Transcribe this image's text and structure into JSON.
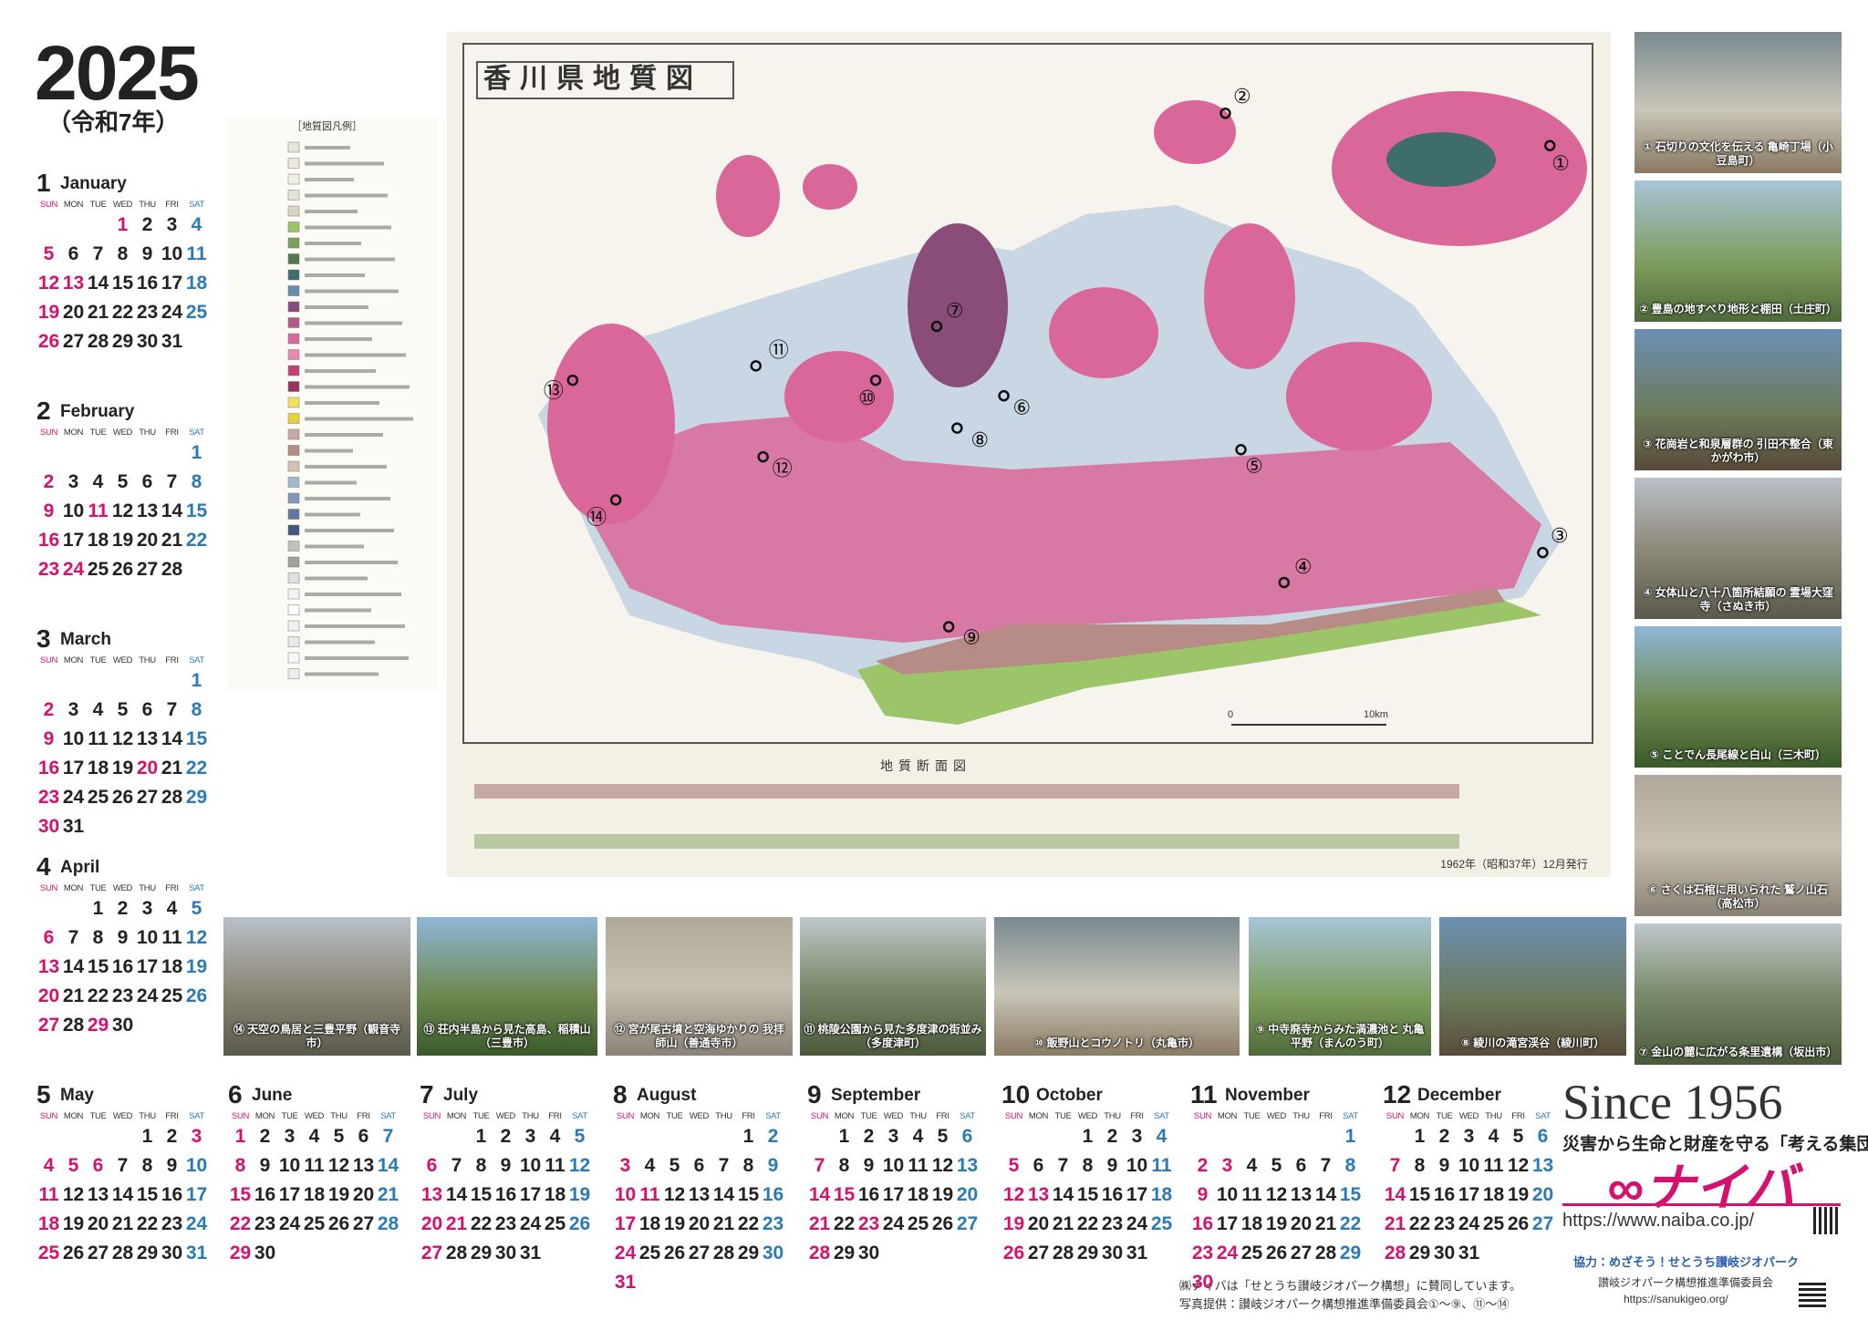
{
  "header": {
    "year": "2025",
    "era": "（令和7年）"
  },
  "weekdays": [
    "SUN",
    "MON",
    "TUE",
    "WED",
    "THU",
    "FRI",
    "SAT"
  ],
  "months": [
    {
      "number": "1",
      "name": "January",
      "holidays": [
        1,
        13
      ],
      "weeks": [
        [
          null,
          null,
          null,
          1,
          2,
          3,
          4
        ],
        [
          5,
          6,
          7,
          8,
          9,
          10,
          11
        ],
        [
          12,
          13,
          14,
          15,
          16,
          17,
          18
        ],
        [
          19,
          20,
          21,
          22,
          23,
          24,
          25
        ],
        [
          26,
          27,
          28,
          29,
          30,
          31
        ]
      ]
    },
    {
      "number": "2",
      "name": "February",
      "holidays": [
        11,
        23,
        24
      ],
      "weeks": [
        [
          null,
          null,
          null,
          null,
          null,
          null,
          1
        ],
        [
          2,
          3,
          4,
          5,
          6,
          7,
          8
        ],
        [
          9,
          10,
          11,
          12,
          13,
          14,
          15
        ],
        [
          16,
          17,
          18,
          19,
          20,
          21,
          22
        ],
        [
          23,
          24,
          25,
          26,
          27,
          28
        ]
      ]
    },
    {
      "number": "3",
      "name": "March",
      "holidays": [
        20
      ],
      "weeks": [
        [
          null,
          null,
          null,
          null,
          null,
          null,
          1
        ],
        [
          2,
          3,
          4,
          5,
          6,
          7,
          8
        ],
        [
          9,
          10,
          11,
          12,
          13,
          14,
          15
        ],
        [
          16,
          17,
          18,
          19,
          20,
          21,
          22
        ],
        [
          23,
          24,
          25,
          26,
          27,
          28,
          29
        ],
        [
          30,
          31
        ]
      ]
    },
    {
      "number": "4",
      "name": "April",
      "holidays": [
        29
      ],
      "weeks": [
        [
          null,
          null,
          1,
          2,
          3,
          4,
          5
        ],
        [
          6,
          7,
          8,
          9,
          10,
          11,
          12
        ],
        [
          13,
          14,
          15,
          16,
          17,
          18,
          19
        ],
        [
          20,
          21,
          22,
          23,
          24,
          25,
          26
        ],
        [
          27,
          28,
          29,
          30
        ]
      ]
    },
    {
      "number": "5",
      "name": "May",
      "holidays": [
        3,
        4,
        5,
        6
      ],
      "weeks": [
        [
          null,
          null,
          null,
          null,
          1,
          2,
          3
        ],
        [
          4,
          5,
          6,
          7,
          8,
          9,
          10
        ],
        [
          11,
          12,
          13,
          14,
          15,
          16,
          17
        ],
        [
          18,
          19,
          20,
          21,
          22,
          23,
          24
        ],
        [
          25,
          26,
          27,
          28,
          29,
          30,
          31
        ]
      ]
    },
    {
      "number": "6",
      "name": "June",
      "holidays": [],
      "weeks": [
        [
          1,
          2,
          3,
          4,
          5,
          6,
          7
        ],
        [
          8,
          9,
          10,
          11,
          12,
          13,
          14
        ],
        [
          15,
          16,
          17,
          18,
          19,
          20,
          21
        ],
        [
          22,
          23,
          24,
          25,
          26,
          27,
          28
        ],
        [
          29,
          30
        ]
      ]
    },
    {
      "number": "7",
      "name": "July",
      "holidays": [
        21
      ],
      "weeks": [
        [
          null,
          null,
          1,
          2,
          3,
          4,
          5
        ],
        [
          6,
          7,
          8,
          9,
          10,
          11,
          12
        ],
        [
          13,
          14,
          15,
          16,
          17,
          18,
          19
        ],
        [
          20,
          21,
          22,
          23,
          24,
          25,
          26
        ],
        [
          27,
          28,
          29,
          30,
          31
        ]
      ]
    },
    {
      "number": "8",
      "name": "August",
      "holidays": [
        11
      ],
      "weeks": [
        [
          null,
          null,
          null,
          null,
          null,
          1,
          2
        ],
        [
          3,
          4,
          5,
          6,
          7,
          8,
          9
        ],
        [
          10,
          11,
          12,
          13,
          14,
          15,
          16
        ],
        [
          17,
          18,
          19,
          20,
          21,
          22,
          23
        ],
        [
          24,
          25,
          26,
          27,
          28,
          29,
          30
        ],
        [
          31
        ]
      ]
    },
    {
      "number": "9",
      "name": "September",
      "holidays": [
        15,
        23
      ],
      "weeks": [
        [
          null,
          1,
          2,
          3,
          4,
          5,
          6
        ],
        [
          7,
          8,
          9,
          10,
          11,
          12,
          13
        ],
        [
          14,
          15,
          16,
          17,
          18,
          19,
          20
        ],
        [
          21,
          22,
          23,
          24,
          25,
          26,
          27
        ],
        [
          28,
          29,
          30
        ]
      ]
    },
    {
      "number": "10",
      "name": "October",
      "holidays": [
        13
      ],
      "weeks": [
        [
          null,
          null,
          null,
          1,
          2,
          3,
          4
        ],
        [
          5,
          6,
          7,
          8,
          9,
          10,
          11
        ],
        [
          12,
          13,
          14,
          15,
          16,
          17,
          18
        ],
        [
          19,
          20,
          21,
          22,
          23,
          24,
          25
        ],
        [
          26,
          27,
          28,
          29,
          30,
          31
        ]
      ]
    },
    {
      "number": "11",
      "name": "November",
      "holidays": [
        3,
        23,
        24
      ],
      "weeks": [
        [
          null,
          null,
          null,
          null,
          null,
          null,
          1
        ],
        [
          2,
          3,
          4,
          5,
          6,
          7,
          8
        ],
        [
          9,
          10,
          11,
          12,
          13,
          14,
          15
        ],
        [
          16,
          17,
          18,
          19,
          20,
          21,
          22
        ],
        [
          23,
          24,
          25,
          26,
          27,
          28,
          29
        ],
        [
          30
        ]
      ]
    },
    {
      "number": "12",
      "name": "December",
      "holidays": [],
      "weeks": [
        [
          null,
          1,
          2,
          3,
          4,
          5,
          6
        ],
        [
          7,
          8,
          9,
          10,
          11,
          12,
          13
        ],
        [
          14,
          15,
          16,
          17,
          18,
          19,
          20
        ],
        [
          21,
          22,
          23,
          24,
          25,
          26,
          27
        ],
        [
          28,
          29,
          30,
          31
        ]
      ]
    }
  ],
  "map": {
    "title": "香川県地質図",
    "legend_title": "［地質図凡例］",
    "section_title": "地質断面図",
    "issued": "1962年（昭和37年）12月発行",
    "scale_start": "0",
    "scale_end": "10km",
    "markers": [
      "①",
      "②",
      "③",
      "④",
      "⑤",
      "⑥",
      "⑦",
      "⑧",
      "⑨",
      "⑩",
      "⑪",
      "⑫",
      "⑬",
      "⑭"
    ]
  },
  "photos": {
    "right": [
      "① 石切りの文化を伝える 亀崎丁場（小豆島町）",
      "② 豊島の地すべり地形と棚田（土庄町）",
      "③ 花崗岩と和泉層群の 引田不整合（東かがわ市）",
      "④ 女体山と八十八箇所結願の 霊場大窪寺（さぬき市）",
      "⑤ ことでん長尾線と白山（三木町）",
      "⑥ さくは石棺に用いられた 鷲ノ山石（高松市）",
      "⑦ 金山の麓に広がる条里遺構（坂出市）"
    ],
    "bottom": [
      "⑭ 天空の鳥居と三豊平野（観音寺市）",
      "⑬ 荘内半島から見た高島、稲積山（三豊市）",
      "⑫ 宮が尾古墳と空海ゆかりの 我拝師山（善通寺市）",
      "⑪ 桃陵公園から見た多度津の街並み（多度津町）",
      "⑩ 飯野山とコウノトリ（丸亀市）",
      "⑨ 中寺廃寺からみた満濃池と 丸亀平野（まんのう町）",
      "⑧ 綾川の滝宮渓谷（綾川町）"
    ]
  },
  "company": {
    "since": "Since 1956",
    "tagline": "災害から生命と財産を守る「考える集団」",
    "logo": "∞ナイバ",
    "url": "https://www.naiba.co.jp/"
  },
  "credits": {
    "support": "協力：めざそう！せとうち讃岐ジオパーク",
    "committee": "讃岐ジオパーク構想推進準備委員会",
    "committee_url": "https://sanukigeo.org/",
    "note": "㈱ナイバは「せとうち讃岐ジオパーク構想」に賛同しています。",
    "photo_credit": "写真提供：讃岐ジオパーク構想推進準備委員会①～⑨、⑪～⑭"
  }
}
